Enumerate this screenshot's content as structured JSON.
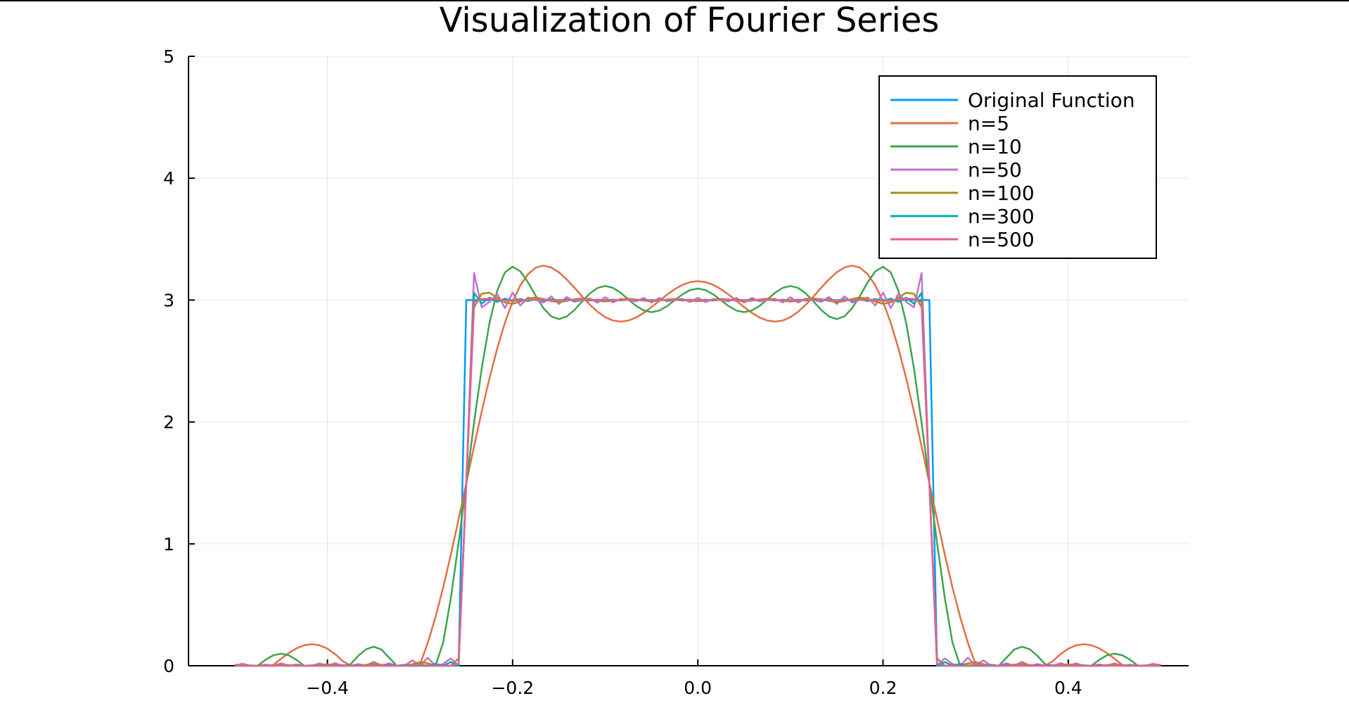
{
  "chart_data": {
    "type": "line",
    "title": "Visualization of Fourier Series",
    "xlabel": "",
    "ylabel": "",
    "xlim": [
      -0.55,
      0.53
    ],
    "ylim": [
      0,
      5
    ],
    "x_ticks": [
      -0.4,
      -0.2,
      0.0,
      0.2,
      0.4
    ],
    "x_tick_labels": [
      "−0.4",
      "−0.2",
      "0.0",
      "0.2",
      "0.4"
    ],
    "y_ticks": [
      0,
      1,
      2,
      3,
      4,
      5
    ],
    "y_tick_labels": [
      "0",
      "1",
      "2",
      "3",
      "4",
      "5"
    ],
    "grid": true,
    "legend_position": "top-right",
    "square_wave": {
      "amplitude": 3,
      "half_width": 0.25,
      "period": 1,
      "x_range": [
        -0.5,
        0.5
      ],
      "samples": 121
    },
    "series": [
      {
        "name": "Original Function",
        "color": "#009AFA",
        "harmonics": 0
      },
      {
        "name": "n=5",
        "color": "#E36F47",
        "harmonics": 5
      },
      {
        "name": "n=10",
        "color": "#3EA44E",
        "harmonics": 10
      },
      {
        "name": "n=50",
        "color": "#C371D2",
        "harmonics": 50
      },
      {
        "name": "n=100",
        "color": "#AC8D19",
        "harmonics": 100
      },
      {
        "name": "n=300",
        "color": "#00A9AD",
        "harmonics": 300
      },
      {
        "name": "n=500",
        "color": "#ED5E93",
        "harmonics": 500
      }
    ]
  }
}
